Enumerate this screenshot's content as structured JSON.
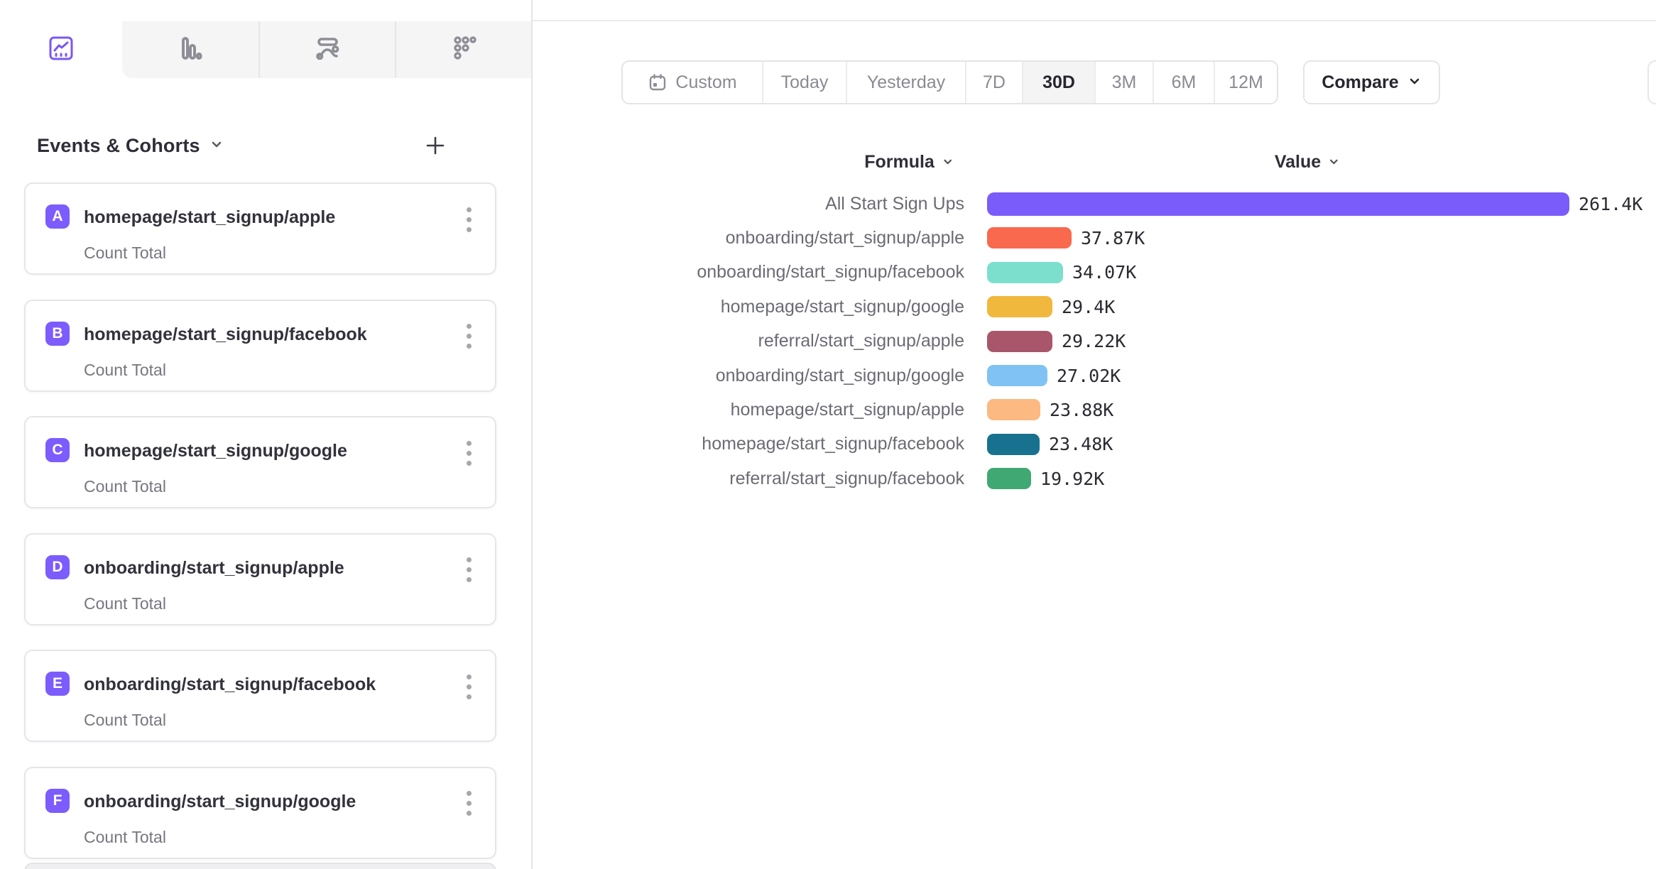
{
  "accent_color": "#7C5CFC",
  "tabs": [
    {
      "icon": "insights-line-chart-icon",
      "active": true
    },
    {
      "icon": "bar-chart-icon",
      "active": false
    },
    {
      "icon": "flows-icon",
      "active": false
    },
    {
      "icon": "retention-dots-icon",
      "active": false
    }
  ],
  "sidebar": {
    "header": {
      "title": "Events & Cohorts"
    },
    "cards": [
      {
        "letter": "A",
        "title": "homepage/start_signup/apple",
        "subtitle": "Count Total"
      },
      {
        "letter": "B",
        "title": "homepage/start_signup/facebook",
        "subtitle": "Count Total"
      },
      {
        "letter": "C",
        "title": "homepage/start_signup/google",
        "subtitle": "Count Total"
      },
      {
        "letter": "D",
        "title": "onboarding/start_signup/apple",
        "subtitle": "Count Total"
      },
      {
        "letter": "E",
        "title": "onboarding/start_signup/facebook",
        "subtitle": "Count Total"
      },
      {
        "letter": "F",
        "title": "onboarding/start_signup/google",
        "subtitle": "Count Total"
      }
    ],
    "badge_color": "#7C5CFC"
  },
  "toolbar": {
    "date_ranges": [
      "Custom",
      "Today",
      "Yesterday",
      "7D",
      "30D",
      "3M",
      "6M",
      "12M"
    ],
    "active_range": "30D",
    "custom_icon": "calendar-icon",
    "compare_label": "Compare"
  },
  "chart_data": {
    "type": "bar",
    "orientation": "horizontal",
    "title": "",
    "column_headers": {
      "formula": "Formula",
      "value": "Value"
    },
    "xlim": [
      0,
      261400
    ],
    "categories": [
      "All Start Sign Ups",
      "onboarding/start_signup/apple",
      "onboarding/start_signup/facebook",
      "homepage/start_signup/google",
      "referral/start_signup/apple",
      "onboarding/start_signup/google",
      "homepage/start_signup/apple",
      "homepage/start_signup/facebook",
      "referral/start_signup/facebook"
    ],
    "values": [
      261400,
      37870,
      34070,
      29400,
      29220,
      27020,
      23880,
      23480,
      19920
    ],
    "value_labels": [
      "261.4K",
      "37.87K",
      "34.07K",
      "29.4K",
      "29.22K",
      "27.02K",
      "23.88K",
      "23.48K",
      "19.92K"
    ],
    "bar_colors": [
      "#7A5CFA",
      "#F9694D",
      "#7CDFCD",
      "#F1B83E",
      "#A9566B",
      "#80C2F3",
      "#FCB981",
      "#17718F",
      "#3FA873"
    ],
    "legend": false,
    "grid": false
  }
}
